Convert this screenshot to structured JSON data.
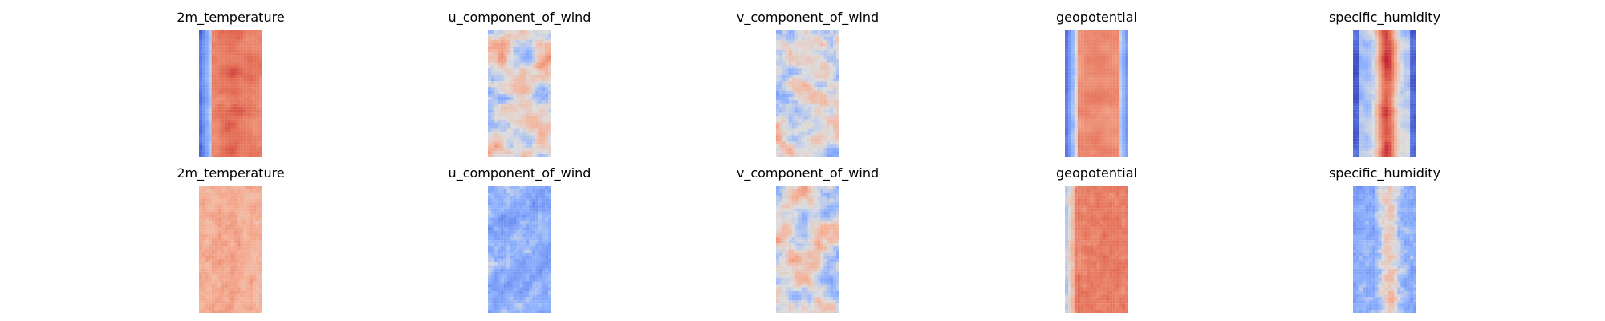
{
  "chart_data": [
    {
      "type": "heatmap",
      "title": "2m_temperature",
      "row": 1,
      "col": 1,
      "colormap": "coolwarm",
      "pattern": "temperature",
      "seed": 11
    },
    {
      "type": "heatmap",
      "title": "u_component_of_wind",
      "row": 1,
      "col": 2,
      "colormap": "coolwarm",
      "pattern": "wind",
      "seed": 12
    },
    {
      "type": "heatmap",
      "title": "v_component_of_wind",
      "row": 1,
      "col": 3,
      "colormap": "coolwarm",
      "pattern": "wind",
      "seed": 13
    },
    {
      "type": "heatmap",
      "title": "geopotential",
      "row": 1,
      "col": 4,
      "colormap": "coolwarm",
      "pattern": "geopotential",
      "seed": 14
    },
    {
      "type": "heatmap",
      "title": "specific_humidity",
      "row": 1,
      "col": 5,
      "colormap": "coolwarm",
      "pattern": "humidity",
      "seed": 15
    },
    {
      "type": "heatmap",
      "title": "2m_temperature",
      "row": 2,
      "col": 1,
      "colormap": "coolwarm",
      "pattern": "temperature2",
      "seed": 21
    },
    {
      "type": "heatmap",
      "title": "u_component_of_wind",
      "row": 2,
      "col": 2,
      "colormap": "coolwarm",
      "pattern": "wind2",
      "seed": 22
    },
    {
      "type": "heatmap",
      "title": "v_component_of_wind",
      "row": 2,
      "col": 3,
      "colormap": "coolwarm",
      "pattern": "wind",
      "seed": 23
    },
    {
      "type": "heatmap",
      "title": "geopotential",
      "row": 2,
      "col": 4,
      "colormap": "coolwarm",
      "pattern": "geopotential2",
      "seed": 24
    },
    {
      "type": "heatmap",
      "title": "specific_humidity",
      "row": 2,
      "col": 5,
      "colormap": "coolwarm",
      "pattern": "humidity2",
      "seed": 25
    }
  ]
}
